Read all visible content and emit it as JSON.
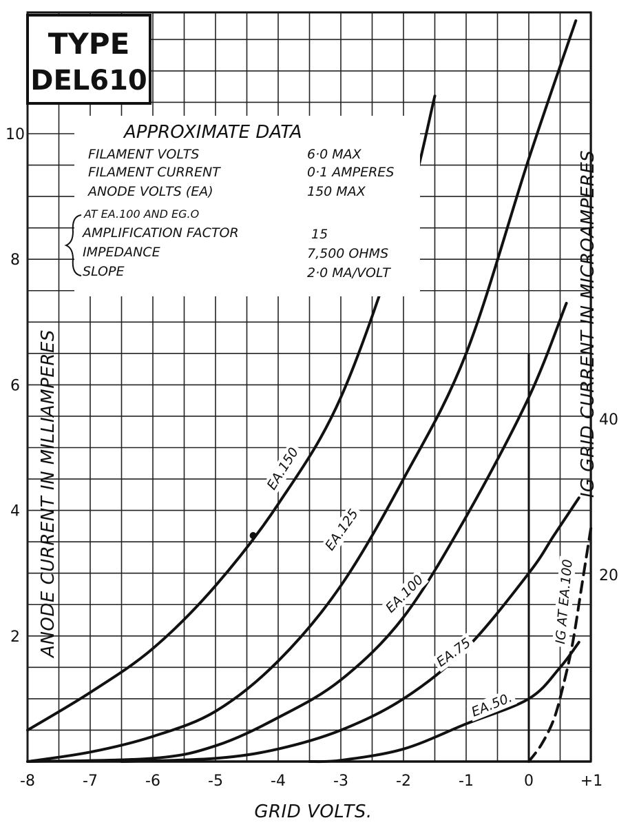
{
  "chart_data": {
    "type": "line",
    "title": "TYPE\nDEL610",
    "title_lines": [
      "TYPE",
      "DEL610"
    ],
    "xlabel": "GRID VOLTS.",
    "ylabel": "ANODE CURRENT IN MILLIAMPERES",
    "y2label": "IG GRID CURRENT IN MICROAMPERES",
    "xlim": [
      -8,
      1
    ],
    "ylim": [
      0,
      11.8
    ],
    "y2lim": [
      0,
      56
    ],
    "x_ticks": [
      -8,
      -7,
      -6,
      -5,
      -4,
      -3,
      -2,
      -1,
      0,
      1
    ],
    "x_tick_labels": [
      "-8",
      "-7",
      "-6",
      "-5",
      "-4",
      "-3",
      "-2",
      "-1",
      "0",
      "+1"
    ],
    "y_ticks": [
      2,
      4,
      6,
      8,
      10
    ],
    "y_tick_labels": [
      "2",
      "4",
      "6",
      "8",
      "10"
    ],
    "y2_ticks": [
      20,
      40
    ],
    "y2_tick_labels": [
      "20",
      "40"
    ],
    "grid": true,
    "approximate_data": {
      "heading": "APPROXIMATE DATA",
      "rows": [
        {
          "label": "FILAMENT VOLTS",
          "value": "6·0 MAX"
        },
        {
          "label": "FILAMENT CURRENT",
          "value": "0·1 AMPERES"
        },
        {
          "label": "ANODE VOLTS (EA)",
          "value": "150 MAX"
        }
      ],
      "condition": "AT EA.100 AND EG.O",
      "bracket_rows": [
        {
          "label": "AMPLIFICATION FACTOR",
          "value": "15"
        },
        {
          "label": "IMPEDANCE",
          "value": "7,500 OHMS"
        },
        {
          "label": "SLOPE",
          "value": "2·0 MA/VOLT"
        }
      ]
    },
    "series": [
      {
        "name": "EA.150",
        "x": [
          -8,
          -7,
          -6,
          -5,
          -4,
          -3,
          -2,
          -1.5
        ],
        "y": [
          0.5,
          1.1,
          1.8,
          2.8,
          4.1,
          5.8,
          8.6,
          10.6
        ]
      },
      {
        "name": "EA.125",
        "x": [
          -8,
          -7,
          -6,
          -5,
          -4,
          -3,
          -2,
          -1,
          0,
          0.75
        ],
        "y": [
          0,
          0.15,
          0.4,
          0.8,
          1.6,
          2.8,
          4.5,
          6.5,
          9.6,
          11.8
        ]
      },
      {
        "name": "EA.100",
        "x": [
          -8,
          -6,
          -5,
          -4,
          -3,
          -2,
          -1,
          0,
          0.6
        ],
        "y": [
          0,
          0.05,
          0.25,
          0.7,
          1.3,
          2.3,
          3.9,
          5.8,
          7.3
        ]
      },
      {
        "name": "EA.75",
        "x": [
          -6.5,
          -5,
          -4,
          -3,
          -2,
          -1,
          0,
          0.4,
          0.8
        ],
        "y": [
          0,
          0.05,
          0.2,
          0.5,
          1.0,
          1.8,
          3.0,
          3.6,
          4.2
        ]
      },
      {
        "name": "EA.50.",
        "x": [
          -3.5,
          -3,
          -2,
          -1,
          0,
          0.5,
          0.8
        ],
        "y": [
          0,
          0.02,
          0.2,
          0.6,
          1.0,
          1.5,
          1.9
        ]
      },
      {
        "name": "IG AT EA.100",
        "axis": "y2",
        "dashed": true,
        "x": [
          0,
          0.2,
          0.4,
          0.55,
          0.7,
          0.85,
          1.0
        ],
        "y": [
          0,
          2,
          5,
          9,
          14,
          21,
          28
        ]
      }
    ]
  }
}
